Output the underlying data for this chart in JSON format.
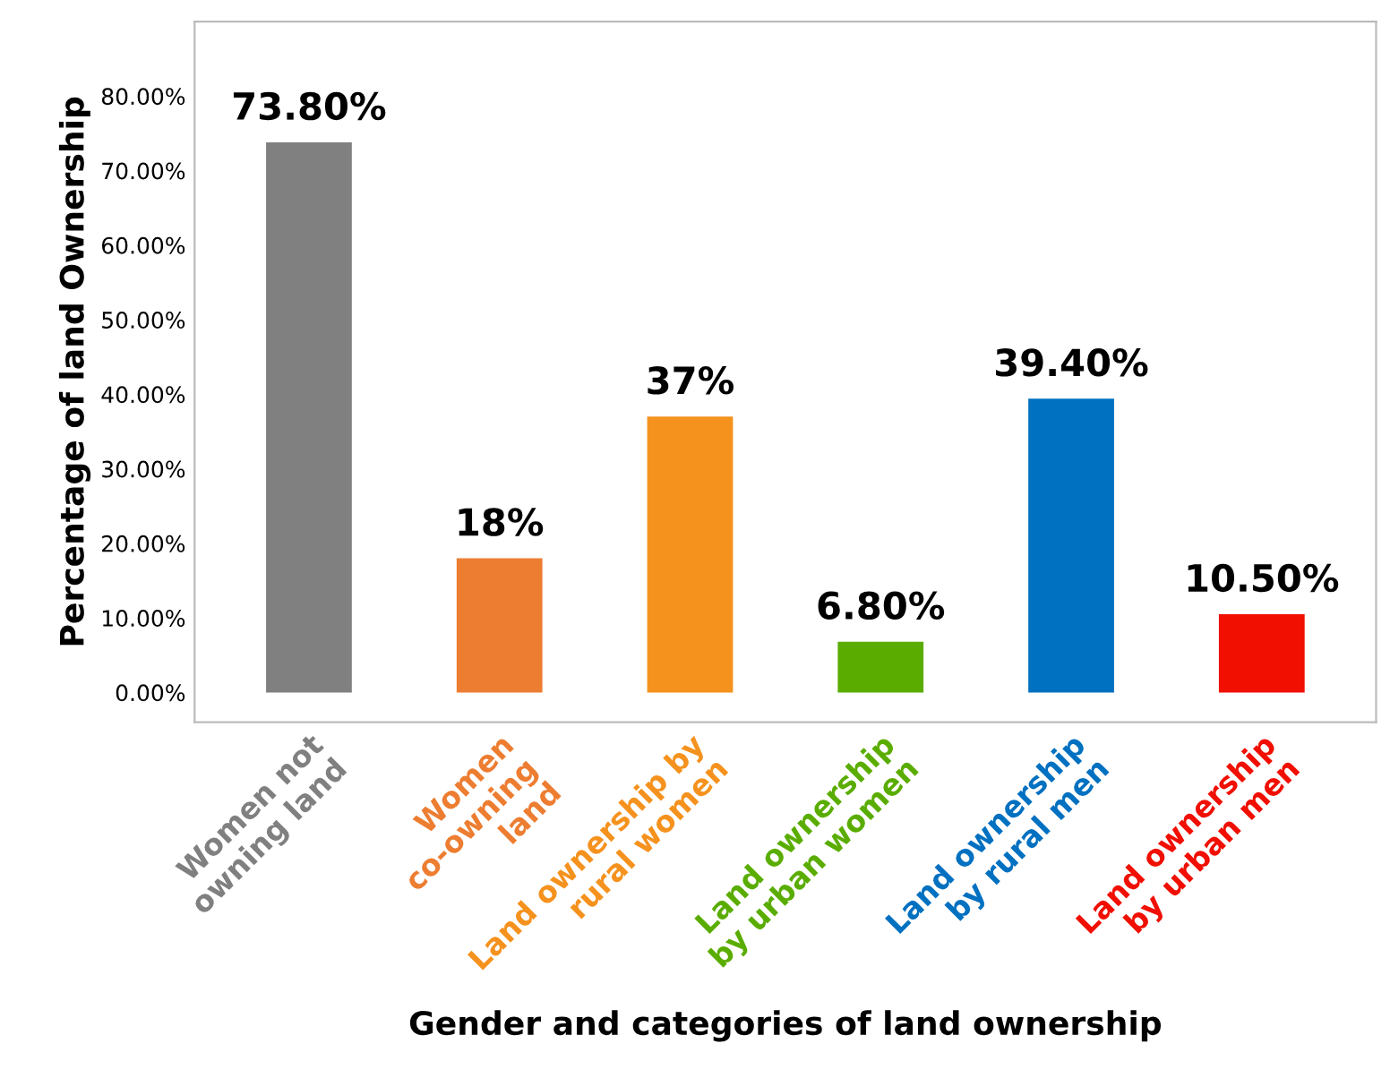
{
  "chart_data": {
    "type": "bar",
    "xlabel": "Gender and categories of land ownership",
    "ylabel": "Percentage of land Ownership",
    "categories": [
      "Women not\nowning land",
      "Women\nco-owning\nland",
      "Land ownership by\nrural women",
      "Land ownership\nby urban women",
      "Land ownership\nby rural men",
      "Land ownership\nby urban men"
    ],
    "values": [
      73.8,
      18,
      37,
      6.8,
      39.4,
      10.5
    ],
    "value_labels": [
      "73.80%",
      "18%",
      "37%",
      "6.80%",
      "39.40%",
      "10.50%"
    ],
    "colors": [
      "#808080",
      "#ed7d31",
      "#f5921e",
      "#5aad00",
      "#0070c0",
      "#f00f00"
    ],
    "ylim": [
      -4,
      90
    ],
    "yticks": [
      {
        "value": 0,
        "label": "0.00%"
      },
      {
        "value": 10,
        "label": "10.00%"
      },
      {
        "value": 20,
        "label": "20.00%"
      },
      {
        "value": 30,
        "label": "30.00%"
      },
      {
        "value": 40,
        "label": "40.00%"
      },
      {
        "value": 50,
        "label": "50.00%"
      },
      {
        "value": 60,
        "label": "60.00%"
      },
      {
        "value": 70,
        "label": "70.00%"
      },
      {
        "value": 80,
        "label": "80.00%"
      }
    ],
    "grid": false
  }
}
